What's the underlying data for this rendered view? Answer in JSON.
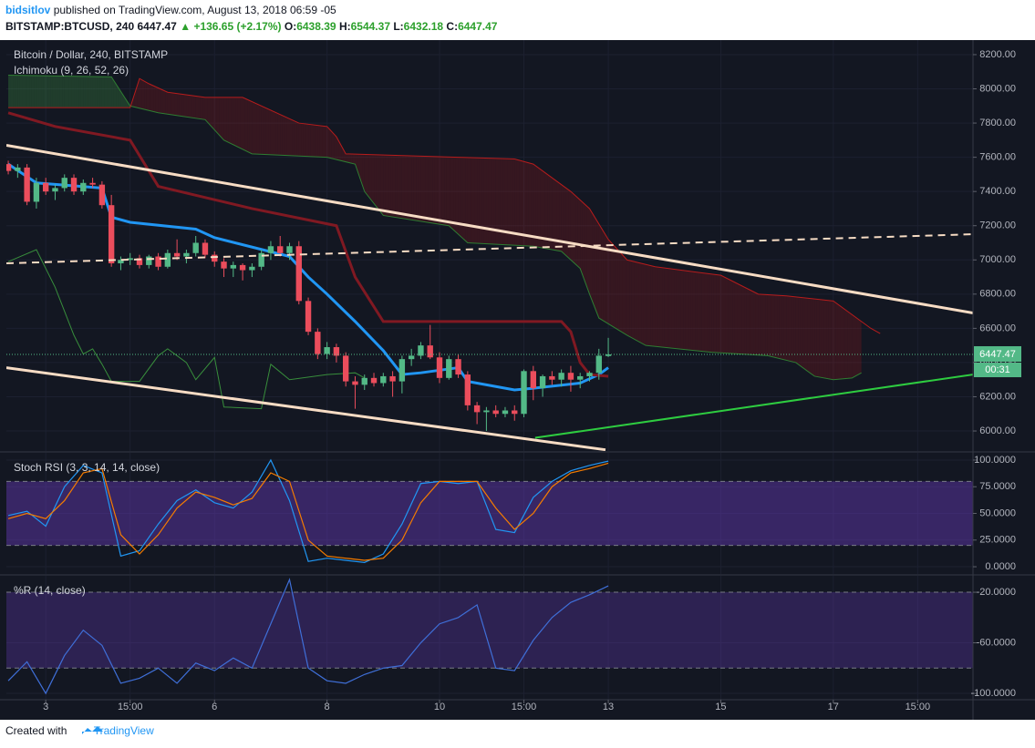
{
  "header": {
    "author": "bidsitlov",
    "published": "published on TradingView.com, August 13, 2018 06:59 -05",
    "symbol": "BITSTAMP:BTCUSD, 240",
    "arrow": "▲",
    "change": "+136.65 (+2.17%)",
    "o": "O:",
    "h": "H:",
    "l": "L:",
    "c": "C:"
  },
  "footer": {
    "created": "Created with",
    "brand": "TradingView"
  },
  "chart_data": [
    {
      "type": "candlestick",
      "title": "Bitcoin / Dollar, 240, BITSTAMP",
      "indicator": "Ichimoku (9, 26, 52, 26)",
      "up_color": "#53b987",
      "down_color": "#eb4d5c",
      "grid": true,
      "countdown": "00:31",
      "x": [
        -4,
        -3,
        -2,
        -1,
        0,
        1,
        2,
        3,
        4,
        5,
        6,
        7,
        8,
        9,
        10,
        11,
        12,
        13,
        14,
        15,
        16,
        17,
        18,
        19,
        20,
        21,
        22,
        23,
        24,
        25,
        26,
        27,
        28,
        29,
        30,
        31,
        32,
        33,
        34,
        35,
        36,
        37,
        38,
        39,
        40,
        41,
        42,
        43,
        44,
        45,
        46,
        47,
        48,
        49,
        50,
        51,
        52,
        53,
        54,
        55,
        56,
        57,
        58,
        59,
        60
      ],
      "open": [
        7560,
        7520,
        7540,
        7340,
        7450,
        7400,
        7420,
        7480,
        7400,
        7450,
        7440,
        7320,
        6980,
        7000,
        7010,
        6970,
        7020,
        6960,
        7040,
        7020,
        7040,
        7100,
        7030,
        6990,
        6950,
        6970,
        6940,
        6960,
        7040,
        7080,
        7040,
        7080,
        6760,
        6580,
        6450,
        6490,
        6440,
        6290,
        6270,
        6310,
        6280,
        6320,
        6290,
        6420,
        6440,
        6500,
        6430,
        6310,
        6420,
        6330,
        6150,
        6110,
        6120,
        6100,
        6120,
        6100,
        6350,
        6250,
        6320,
        6300,
        6340,
        6300,
        6320,
        6340,
        6438.39
      ],
      "high": [
        7580,
        7560,
        7560,
        7480,
        7480,
        7440,
        7500,
        7500,
        7470,
        7480,
        7460,
        7380,
        7020,
        7040,
        7030,
        7030,
        7040,
        7060,
        7120,
        7060,
        7140,
        7120,
        7050,
        7010,
        6990,
        6980,
        6980,
        7060,
        7110,
        7140,
        7100,
        7110,
        6780,
        6600,
        6520,
        6510,
        6460,
        6320,
        6330,
        6340,
        6340,
        6350,
        6440,
        6480,
        6520,
        6620,
        6460,
        6440,
        6450,
        6350,
        6170,
        6140,
        6150,
        6140,
        6150,
        6360,
        6380,
        6330,
        6350,
        6360,
        6380,
        6340,
        6350,
        6480,
        6544.37
      ],
      "low": [
        7500,
        7480,
        7320,
        7300,
        7380,
        7350,
        7400,
        7380,
        7380,
        7420,
        7300,
        6960,
        6940,
        6970,
        6950,
        6950,
        6940,
        6950,
        7000,
        6980,
        7020,
        7010,
        6960,
        6900,
        6900,
        6880,
        6900,
        6940,
        7000,
        7020,
        7000,
        6740,
        6560,
        6420,
        6420,
        6400,
        6260,
        6130,
        6240,
        6260,
        6260,
        6200,
        6220,
        6380,
        6420,
        6420,
        6280,
        6300,
        6310,
        6120,
        6040,
        6000,
        6080,
        6080,
        6060,
        6080,
        6180,
        6200,
        6270,
        6260,
        6230,
        6250,
        6290,
        6300,
        6432.18
      ],
      "close": [
        7520,
        7540,
        7340,
        7450,
        7400,
        7420,
        7480,
        7400,
        7450,
        7440,
        7320,
        6980,
        7000,
        7010,
        6970,
        7020,
        6960,
        7040,
        7020,
        7040,
        7100,
        7030,
        6990,
        6950,
        6970,
        6940,
        6960,
        7040,
        7080,
        7040,
        7080,
        6760,
        6580,
        6450,
        6490,
        6440,
        6290,
        6270,
        6310,
        6280,
        6320,
        6290,
        6420,
        6440,
        6500,
        6430,
        6310,
        6420,
        6330,
        6150,
        6110,
        6120,
        6100,
        6120,
        6100,
        6350,
        6250,
        6320,
        6300,
        6340,
        6300,
        6320,
        6340,
        6440,
        6447.47
      ],
      "series": [
        {
          "color": "#2196f3",
          "width": 3,
          "x": [
            -4,
            -1,
            6,
            7,
            9,
            16,
            18,
            26,
            28,
            30,
            33,
            36,
            38,
            40,
            44,
            45,
            50,
            52,
            57,
            59,
            60
          ],
          "values": [
            7560,
            7450,
            7420,
            7250,
            7220,
            7180,
            7130,
            7020,
            6900,
            6800,
            6640,
            6470,
            6330,
            6340,
            6370,
            6290,
            6240,
            6250,
            6280,
            6330,
            6370
          ]
        },
        {
          "color": "#801922",
          "width": 3,
          "x": [
            -4,
            1,
            9,
            12,
            22,
            31,
            33,
            36,
            55,
            56,
            57,
            58,
            60
          ],
          "values": [
            7860,
            7780,
            7700,
            7430,
            7300,
            7200,
            6900,
            6640,
            6640,
            6580,
            6400,
            6330,
            6320
          ]
        },
        {
          "color": "#388e3c",
          "width": 1,
          "x": [
            -4,
            -1,
            1,
            3,
            4,
            5,
            6,
            7,
            10,
            12,
            13,
            15,
            16,
            18,
            19,
            23,
            24,
            26,
            30,
            33,
            34
          ],
          "values": [
            6990,
            7060,
            6840,
            6560,
            6450,
            6480,
            6390,
            6290,
            6290,
            6440,
            6480,
            6400,
            6300,
            6430,
            6140,
            6130,
            6390,
            6300,
            6330,
            6340,
            6310
          ]
        }
      ],
      "cloud": {
        "up_color": "rgba(67,160,71,0.28)",
        "down_color": "rgba(183,28,28,0.22)",
        "lines": [
          {
            "color": "#2e7d32",
            "x": [
              -4,
              7,
              9,
              12,
              17,
              19,
              22,
              30,
              33,
              34,
              36,
              43,
              45,
              52,
              55,
              57,
              58,
              59,
              62,
              64,
              71,
              77,
              80,
              82,
              84,
              86,
              87
            ],
            "values": [
              8080,
              8070,
              7900,
              7860,
              7820,
              7700,
              7620,
              7600,
              7560,
              7400,
              7260,
              7200,
              7100,
              7080,
              7050,
              6950,
              6800,
              6660,
              6560,
              6500,
              6460,
              6440,
              6400,
              6320,
              6300,
              6310,
              6340
            ]
          },
          {
            "color": "#b71c1c",
            "x": [
              -4,
              9,
              10,
              11,
              13,
              17,
              21,
              27,
              30,
              31,
              32,
              44,
              50,
              52,
              56,
              58,
              60,
              62,
              65,
              72,
              76,
              79,
              84,
              88,
              89
            ],
            "values": [
              7890,
              7890,
              8060,
              8030,
              7980,
              7950,
              7950,
              7800,
              7780,
              7720,
              7620,
              7600,
              7590,
              7560,
              7400,
              7300,
              7120,
              7000,
              6960,
              6910,
              6800,
              6790,
              6760,
              6600,
              6570
            ]
          }
        ]
      },
      "drawings": [
        {
          "color": "#f7dcc4",
          "width": 3,
          "dashed": false,
          "x": [
            -4.2,
            98.9
          ],
          "values": [
            7670,
            6690
          ]
        },
        {
          "color": "#f7dcc4",
          "width": 3,
          "dashed": false,
          "x": [
            -4.2,
            59.7
          ],
          "values": [
            6370,
            5890
          ]
        },
        {
          "color": "#2ecc40",
          "width": 2,
          "dashed": false,
          "x": [
            52.2,
            98.9
          ],
          "values": [
            5960,
            6330
          ]
        },
        {
          "color": "#f7dcc4",
          "width": 2,
          "dashed": true,
          "x": [
            -4.2,
            98.9
          ],
          "values": [
            6980,
            7150
          ]
        }
      ],
      "xlim": [
        -4.2,
        98.9
      ],
      "xticks": [
        {
          "value": 0,
          "label": "3"
        },
        {
          "value": 9,
          "label": "15:00"
        },
        {
          "value": 18,
          "label": "6"
        },
        {
          "value": 30,
          "label": "8"
        },
        {
          "value": 42,
          "label": "10"
        },
        {
          "value": 51,
          "label": "15:00"
        },
        {
          "value": 60,
          "label": "13"
        },
        {
          "value": 72,
          "label": "15"
        },
        {
          "value": 84,
          "label": "17"
        },
        {
          "value": 93,
          "label": "15:00"
        }
      ],
      "ylim": [
        5883,
        8285
      ],
      "yticks": [
        {
          "value": 6000,
          "label": "6000.00"
        },
        {
          "value": 6200,
          "label": "6200.00"
        },
        {
          "value": 6400,
          "label": "6400.00"
        },
        {
          "value": 6600,
          "label": "6600.00"
        },
        {
          "value": 6800,
          "label": "6800.00"
        },
        {
          "value": 7000,
          "label": "7000.00"
        },
        {
          "value": 7200,
          "label": "7200.00"
        },
        {
          "value": 7400,
          "label": "7400.00"
        },
        {
          "value": 7600,
          "label": "7600.00"
        },
        {
          "value": 7800,
          "label": "7800.00"
        },
        {
          "value": 8000,
          "label": "8000.00"
        },
        {
          "value": 8200,
          "label": "8200.00"
        }
      ]
    },
    {
      "type": "line",
      "title": "Stoch RSI (3, 3, 14, 14, close)",
      "grid": true,
      "band_color": "rgba(103,58,183,0.45)",
      "bands": [
        20,
        80
      ],
      "x": [
        -4,
        -2,
        0,
        2,
        4,
        6,
        8,
        10,
        12,
        14,
        16,
        18,
        20,
        22,
        24,
        26,
        28,
        30,
        32,
        34,
        36,
        38,
        40,
        42,
        44,
        46,
        48,
        50,
        52,
        54,
        56,
        58,
        60
      ],
      "series": [
        {
          "color": "#2196f3",
          "values": [
            48,
            52,
            38,
            75,
            95,
            88,
            10,
            15,
            40,
            62,
            72,
            60,
            55,
            70,
            100,
            62,
            5,
            8,
            6,
            4,
            12,
            40,
            78,
            80,
            78,
            80,
            35,
            32,
            65,
            80,
            90,
            95,
            99
          ]
        },
        {
          "color": "#f57c00",
          "values": [
            45,
            50,
            45,
            62,
            88,
            92,
            30,
            12,
            30,
            55,
            70,
            65,
            58,
            64,
            88,
            80,
            25,
            10,
            8,
            6,
            8,
            25,
            60,
            80,
            80,
            80,
            55,
            35,
            50,
            75,
            88,
            92,
            97
          ]
        }
      ],
      "ylim": [
        -6.8,
        106.8
      ],
      "yticks": [
        {
          "value": 0,
          "label": "0.0000"
        },
        {
          "value": 25,
          "label": "25.0000"
        },
        {
          "value": 50,
          "label": "50.0000"
        },
        {
          "value": 75,
          "label": "75.0000"
        },
        {
          "value": 100,
          "label": "100.0000"
        }
      ]
    },
    {
      "type": "line",
      "title": "%R (14, close)",
      "grid": true,
      "band_color": "rgba(103,58,183,0.32)",
      "bands": [
        -80,
        -20
      ],
      "x": [
        -4,
        -2,
        0,
        2,
        4,
        6,
        8,
        10,
        12,
        14,
        16,
        18,
        20,
        22,
        24,
        26,
        28,
        30,
        32,
        34,
        36,
        38,
        40,
        42,
        44,
        46,
        48,
        50,
        52,
        54,
        56,
        58,
        60
      ],
      "series": [
        {
          "color": "#3f6fd8",
          "values": [
            -90,
            -75,
            -100,
            -70,
            -50,
            -62,
            -92,
            -88,
            -80,
            -92,
            -76,
            -82,
            -72,
            -80,
            -45,
            -10,
            -80,
            -90,
            -92,
            -85,
            -80,
            -78,
            -60,
            -45,
            -40,
            -30,
            -80,
            -82,
            -58,
            -40,
            -28,
            -22,
            -15
          ]
        }
      ],
      "ylim": [
        -105,
        -7
      ],
      "yticks": [
        {
          "value": -20,
          "label": "-20.0000"
        },
        {
          "value": -60,
          "label": "-60.0000"
        },
        {
          "value": -100,
          "label": "-100.0000"
        }
      ]
    }
  ]
}
